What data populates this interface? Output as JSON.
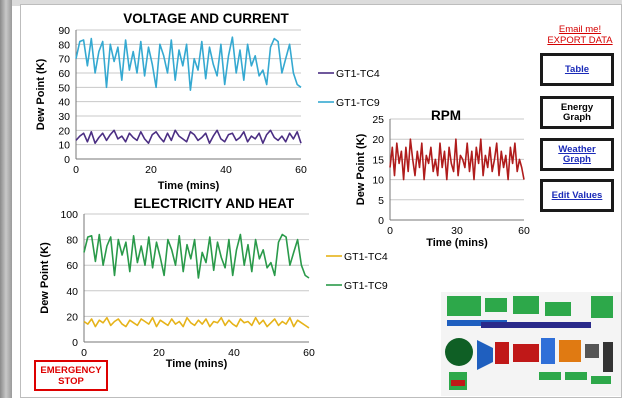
{
  "top_links": {
    "email": "Email me!",
    "export": "EXPORT DATA"
  },
  "nav_buttons": [
    {
      "label_line1": "Table",
      "label_line2": "",
      "style": "link"
    },
    {
      "label_line1": "Energy",
      "label_line2": "Graph",
      "style": "plain"
    },
    {
      "label_line1": "Weather",
      "label_line2": "Graph",
      "style": "link"
    },
    {
      "label_line1": "Edit Values",
      "label_line2": "",
      "style": "link"
    }
  ],
  "emergency_button": {
    "line1": "EMERGENCY",
    "line2": "STOP"
  },
  "colors": {
    "tc4_top": "#4b2e83",
    "tc9": "#35a9d1",
    "tc4_bottom": "#e6b319",
    "tc9_bottom": "#2a9a4a",
    "rpm": "#b01c1c",
    "emergency": "#dd0000",
    "link": "#1a2ab8"
  },
  "chart_data": [
    {
      "id": "voltage",
      "type": "line",
      "title": "VOLTAGE AND CURRENT",
      "xlabel": "Time (mins)",
      "ylabel": "Dew Point (K)",
      "xlim": [
        0,
        60
      ],
      "ylim": [
        0,
        90
      ],
      "xticks": [
        "0",
        "20",
        "40",
        "60"
      ],
      "yticks": [
        "0",
        "10",
        "20",
        "30",
        "40",
        "50",
        "60",
        "70",
        "80",
        "90"
      ],
      "grid": true,
      "legend_position": "right",
      "series": [
        {
          "name": "GT1-TC4",
          "color": "#4b2e83",
          "values": [
            13,
            16,
            18,
            12,
            19,
            11,
            15,
            18,
            13,
            17,
            20,
            14,
            16,
            12,
            18,
            15,
            13,
            19,
            14,
            11,
            17,
            19,
            15,
            12,
            18,
            13,
            20,
            16,
            14,
            12,
            19,
            17,
            13,
            15,
            18,
            11,
            16,
            20,
            14,
            12,
            17,
            18,
            13,
            15,
            19,
            12,
            16,
            14,
            18,
            11,
            17,
            20,
            15,
            13,
            16,
            12,
            18,
            14,
            19,
            11
          ]
        },
        {
          "name": "GT1-TC9",
          "color": "#35a9d1",
          "values": [
            70,
            82,
            83,
            65,
            84,
            60,
            75,
            82,
            50,
            80,
            68,
            78,
            55,
            83,
            62,
            75,
            60,
            82,
            58,
            78,
            66,
            50,
            80,
            72,
            60,
            83,
            55,
            76,
            65,
            80,
            48,
            70,
            62,
            82,
            56,
            78,
            66,
            58,
            80,
            52,
            72,
            85,
            60,
            76,
            55,
            80,
            65,
            72,
            58,
            62,
            52,
            78,
            84,
            82,
            60,
            70,
            80,
            60,
            52,
            50
          ]
        }
      ]
    },
    {
      "id": "electricity",
      "type": "line",
      "title": "ELECTRICITY AND HEAT",
      "xlabel": "Time (mins)",
      "ylabel": "Dew Point (K)",
      "xlim": [
        0,
        60
      ],
      "ylim": [
        0,
        100
      ],
      "xticks": [
        "0",
        "20",
        "40",
        "60"
      ],
      "yticks": [
        "0",
        "20",
        "40",
        "60",
        "80",
        "100"
      ],
      "grid": true,
      "legend_position": "right",
      "series": [
        {
          "name": "GT1-TC4",
          "color": "#e6b319",
          "values": [
            16,
            14,
            18,
            12,
            17,
            15,
            19,
            13,
            16,
            18,
            14,
            12,
            17,
            15,
            13,
            18,
            16,
            14,
            19,
            12,
            17,
            15,
            13,
            18,
            14,
            16,
            12,
            19,
            15,
            13,
            17,
            14,
            18,
            12,
            16,
            15,
            19,
            13,
            17,
            14,
            12,
            18,
            15,
            16,
            13,
            19,
            14,
            17,
            12,
            15,
            18,
            13,
            16,
            14,
            19,
            12,
            17,
            15,
            13,
            11
          ]
        },
        {
          "name": "GT1-TC9",
          "color": "#2a9a4a",
          "values": [
            70,
            82,
            83,
            63,
            84,
            60,
            75,
            82,
            52,
            80,
            68,
            78,
            55,
            83,
            62,
            75,
            60,
            82,
            58,
            78,
            66,
            52,
            80,
            72,
            60,
            83,
            55,
            76,
            65,
            80,
            50,
            70,
            62,
            82,
            56,
            78,
            66,
            58,
            80,
            52,
            72,
            84,
            60,
            76,
            55,
            80,
            65,
            72,
            58,
            62,
            52,
            78,
            84,
            82,
            60,
            70,
            80,
            60,
            52,
            50
          ]
        }
      ]
    },
    {
      "id": "rpm",
      "type": "line",
      "title": "RPM",
      "xlabel": "Time (mins)",
      "ylabel": "Dew Point (K)",
      "xlim": [
        0,
        60
      ],
      "ylim": [
        0,
        25
      ],
      "xticks": [
        "0",
        "30",
        "60"
      ],
      "yticks": [
        "0",
        "5",
        "10",
        "15",
        "20",
        "25"
      ],
      "grid": true,
      "series": [
        {
          "name": "",
          "color": "#b01c1c",
          "values": [
            13,
            18,
            11,
            19,
            14,
            17,
            10,
            18,
            12,
            20,
            15,
            11,
            17,
            13,
            19,
            10,
            16,
            14,
            18,
            12,
            15,
            11,
            19,
            13,
            17,
            10,
            18,
            14,
            12,
            20,
            11,
            16,
            15,
            13,
            19,
            12,
            17,
            10,
            18,
            14,
            20,
            11,
            16,
            13,
            18,
            12,
            15,
            19,
            11,
            17,
            13,
            16,
            10,
            18,
            14,
            19,
            12,
            15,
            13,
            10
          ]
        }
      ]
    }
  ]
}
